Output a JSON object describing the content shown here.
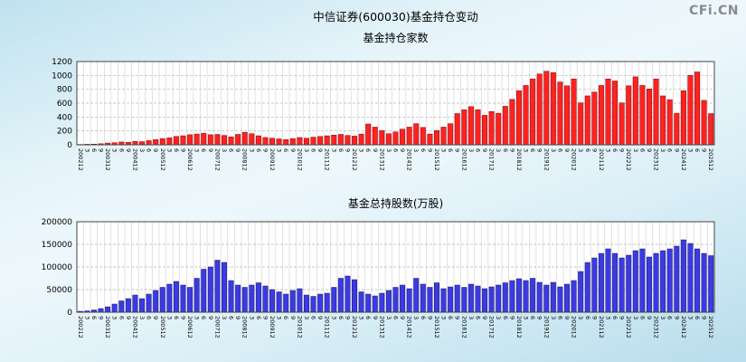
{
  "title": "中信证券(600030)基金持仓变动",
  "watermark": {
    "text": "CFi.CN"
  },
  "chart_data": [
    {
      "type": "bar",
      "title": "基金持仓家数",
      "xlabel": "",
      "ylabel": "",
      "ylim": [
        0,
        1200
      ],
      "yticks": [
        0,
        200,
        400,
        600,
        800,
        1000,
        1200
      ],
      "grid": true,
      "legend": "none",
      "bar_color": "#ff2222",
      "bar_border": "#880000",
      "categories": [
        "200212",
        "3",
        "6",
        "9",
        "200312",
        "3",
        "6",
        "9",
        "200412",
        "3",
        "6",
        "9",
        "200512",
        "3",
        "6",
        "9",
        "200612",
        "3",
        "6",
        "9",
        "200712",
        "3",
        "6",
        "9",
        "200812",
        "3",
        "6",
        "9",
        "200912",
        "3",
        "6",
        "9",
        "201012",
        "3",
        "6",
        "9",
        "201112",
        "3",
        "6",
        "9",
        "201212",
        "3",
        "6",
        "9",
        "201312",
        "3",
        "6",
        "9",
        "201412",
        "3",
        "6",
        "9",
        "201512",
        "3",
        "6",
        "9",
        "201612",
        "3",
        "6",
        "9",
        "201712",
        "3",
        "6",
        "9",
        "201812",
        "3",
        "6",
        "9",
        "201912",
        "3",
        "6",
        "9",
        "202012",
        "3",
        "6",
        "9",
        "202112",
        "3",
        "6",
        "9",
        "202212",
        "3",
        "6",
        "9",
        "202312",
        "3",
        "6",
        "9",
        "202412",
        "3",
        "6",
        "9",
        "202512"
      ],
      "values": [
        5,
        8,
        10,
        15,
        25,
        30,
        40,
        35,
        50,
        45,
        60,
        75,
        90,
        100,
        120,
        130,
        145,
        155,
        165,
        145,
        150,
        135,
        115,
        150,
        180,
        160,
        130,
        105,
        95,
        85,
        75,
        90,
        105,
        95,
        110,
        120,
        130,
        140,
        150,
        135,
        125,
        155,
        300,
        255,
        205,
        160,
        185,
        225,
        255,
        305,
        250,
        155,
        205,
        255,
        305,
        450,
        505,
        550,
        505,
        425,
        480,
        455,
        555,
        655,
        780,
        855,
        950,
        1020,
        1060,
        1040,
        905,
        850,
        950,
        605,
        705,
        760,
        855,
        950,
        920,
        605,
        850,
        980,
        855,
        805,
        950,
        705,
        650,
        455,
        780,
        1000,
        1050,
        640,
        450
      ]
    },
    {
      "type": "bar",
      "title": "基金总持股数(万股)",
      "xlabel": "",
      "ylabel": "",
      "ylim": [
        0,
        200000
      ],
      "yticks": [
        0,
        50000,
        100000,
        150000,
        200000
      ],
      "grid": true,
      "legend": "none",
      "bar_color": "#3b3be0",
      "bar_border": "#101080",
      "categories": [
        "200212",
        "3",
        "6",
        "9",
        "200312",
        "3",
        "6",
        "9",
        "200412",
        "3",
        "6",
        "9",
        "200512",
        "3",
        "6",
        "9",
        "200612",
        "3",
        "6",
        "9",
        "200712",
        "3",
        "6",
        "9",
        "200812",
        "3",
        "6",
        "9",
        "200912",
        "3",
        "6",
        "9",
        "201012",
        "3",
        "6",
        "9",
        "201112",
        "3",
        "6",
        "9",
        "201212",
        "3",
        "6",
        "9",
        "201312",
        "3",
        "6",
        "9",
        "201412",
        "3",
        "6",
        "9",
        "201512",
        "3",
        "6",
        "9",
        "201612",
        "3",
        "6",
        "9",
        "201712",
        "3",
        "6",
        "9",
        "201812",
        "3",
        "6",
        "9",
        "201912",
        "3",
        "6",
        "9",
        "202012",
        "3",
        "6",
        "9",
        "202112",
        "3",
        "6",
        "9",
        "202212",
        "3",
        "6",
        "9",
        "202312",
        "3",
        "6",
        "9",
        "202412",
        "3",
        "6",
        "9",
        "202512"
      ],
      "values": [
        2000,
        3000,
        5000,
        8000,
        12000,
        18000,
        25000,
        30000,
        38000,
        30000,
        40000,
        48000,
        55000,
        62000,
        68000,
        60000,
        55000,
        75000,
        95000,
        100000,
        115000,
        110000,
        70000,
        60000,
        55000,
        60000,
        65000,
        58000,
        50000,
        45000,
        40000,
        48000,
        52000,
        38000,
        35000,
        40000,
        42000,
        55000,
        75000,
        80000,
        72000,
        45000,
        40000,
        36000,
        42000,
        48000,
        55000,
        60000,
        52000,
        75000,
        62000,
        55000,
        65000,
        52000,
        56000,
        60000,
        55000,
        62000,
        58000,
        52000,
        56000,
        60000,
        65000,
        70000,
        74000,
        70000,
        75000,
        66000,
        60000,
        66000,
        56000,
        62000,
        70000,
        90000,
        110000,
        120000,
        130000,
        140000,
        130000,
        120000,
        126000,
        136000,
        140000,
        122000,
        130000,
        136000,
        140000,
        146000,
        160000,
        152000,
        140000,
        130000,
        125000
      ]
    }
  ]
}
